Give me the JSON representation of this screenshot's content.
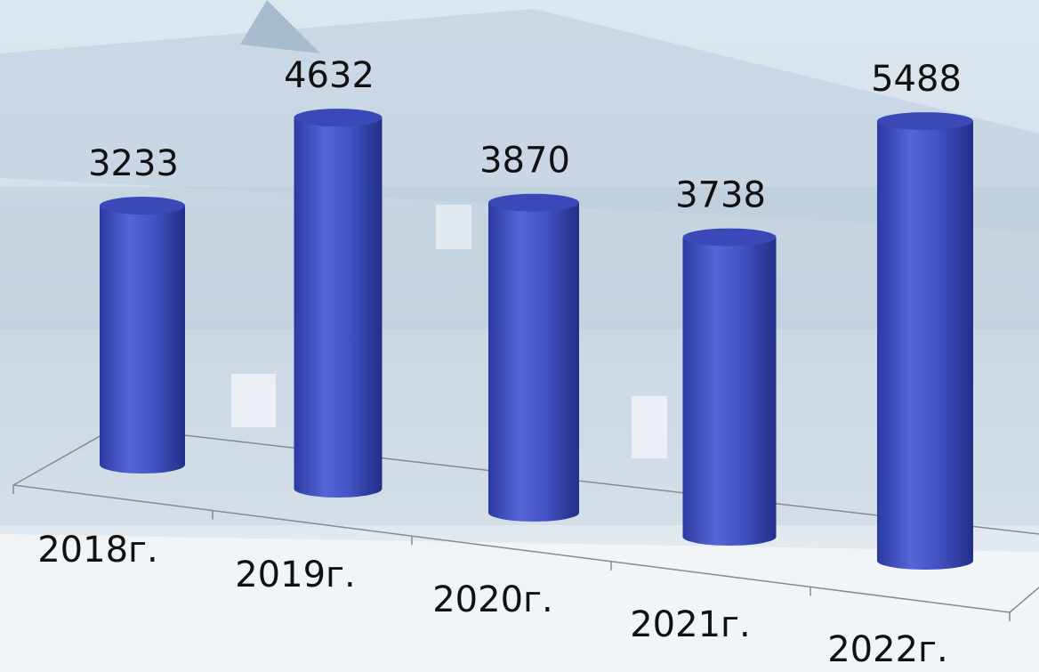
{
  "chart_data": {
    "type": "bar",
    "categories": [
      "2018г.",
      "2019г.",
      "2020г.",
      "2021г.",
      "2022г."
    ],
    "values": [
      3233,
      4632,
      3870,
      3738,
      5488
    ],
    "color": "#4050c4"
  }
}
